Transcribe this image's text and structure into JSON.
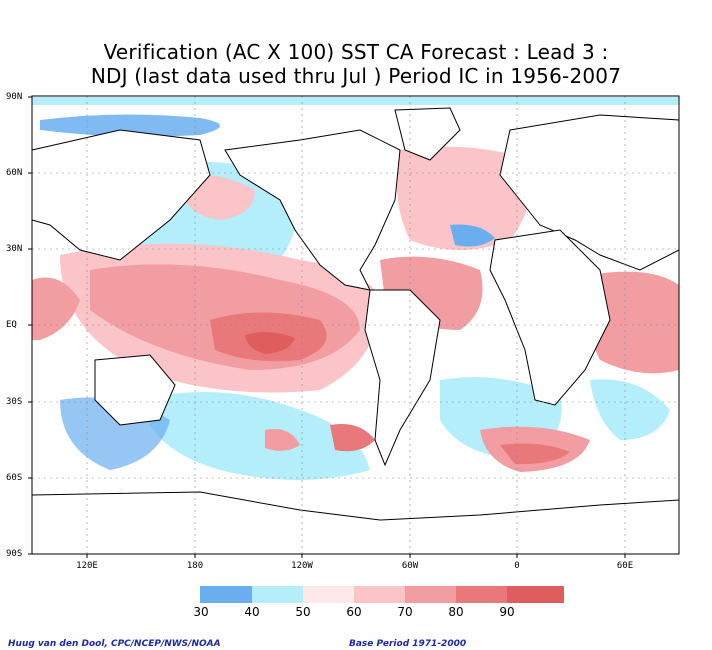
{
  "title": {
    "line1": "Verification (AC X 100) SST CA Forecast : Lead 3 :",
    "line2": "NDJ (last data used thru Jul ) Period IC in 1956-2007"
  },
  "axes": {
    "lat_labels": [
      "90N",
      "60N",
      "30N",
      "EQ",
      "30S",
      "60S",
      "90S"
    ],
    "lon_labels": [
      "120E",
      "180",
      "120W",
      "60W",
      "0",
      "60E"
    ]
  },
  "legend": {
    "ticks": [
      "30",
      "40",
      "50",
      "60",
      "70",
      "80",
      "90"
    ],
    "colors": [
      "#6aaef0",
      "#b4eefa",
      "#ffe8ea",
      "#fbc4c8",
      "#f29da2",
      "#e8787a",
      "#df5d5d"
    ]
  },
  "colors": {
    "ocean_low": "#6aaef0",
    "ocean_light": "#b4eefa",
    "positive_light": "#fbc4c8",
    "positive_mid": "#f29da2",
    "positive_strong": "#e8787a"
  },
  "credits": {
    "left": "Huug van den Dool, CPC/NCEP/NWS/NOAA",
    "right": "Base Period 1971-2000"
  }
}
